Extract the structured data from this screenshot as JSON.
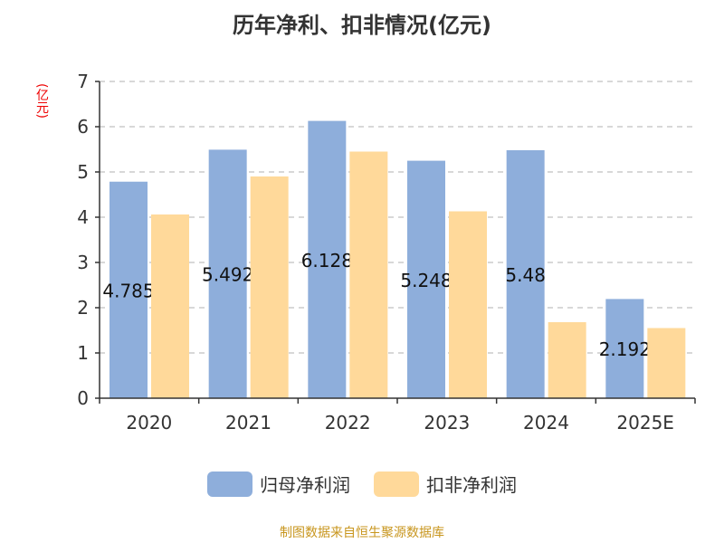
{
  "chart_data": {
    "type": "bar",
    "title": "历年净利、扣非情况(亿元)",
    "ylabel": "(亿元)",
    "categories": [
      "2020",
      "2021",
      "2022",
      "2023",
      "2024",
      "2025E"
    ],
    "ylim": [
      0,
      7
    ],
    "yticks": [
      "0",
      "1",
      "2",
      "3",
      "4",
      "5",
      "6",
      "7"
    ],
    "grid": true,
    "legend_position": "bottom",
    "series": [
      {
        "name": "归母净利润",
        "color": "#8eaedb",
        "values": [
          4.785,
          5.492,
          6.128,
          5.248,
          5.48,
          2.192
        ],
        "labels": [
          "4.785",
          "5.492",
          "6.128",
          "5.248",
          "5.48",
          "2.192"
        ]
      },
      {
        "name": "扣非净利润",
        "color": "#ffd99a",
        "values": [
          4.06,
          4.9,
          5.45,
          4.13,
          1.68,
          1.55
        ]
      }
    ]
  },
  "source": "制图数据来自恒生聚源数据库"
}
